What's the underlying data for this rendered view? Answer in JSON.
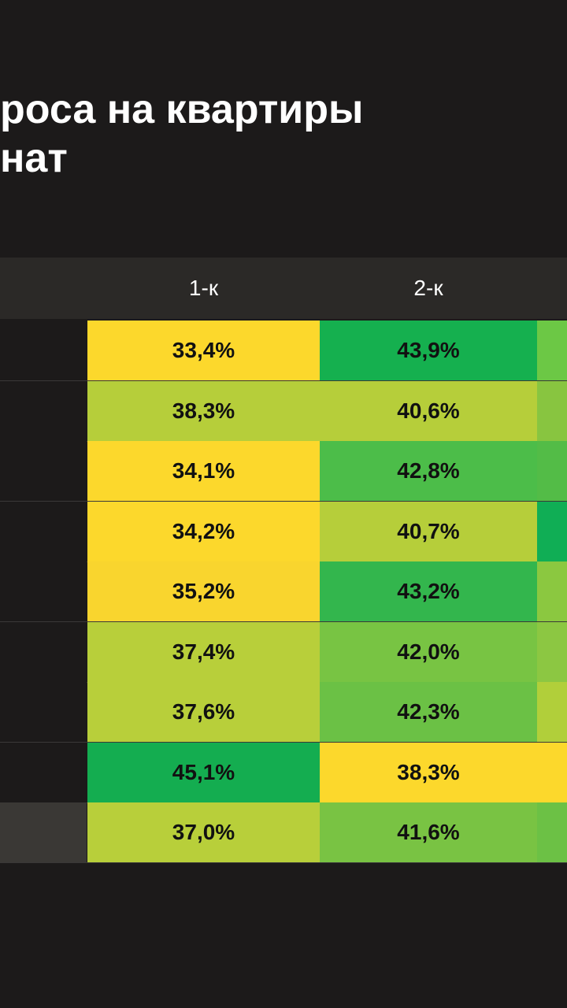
{
  "title_lines": [
    "роса на квартиры",
    "нат"
  ],
  "chart_data": {
    "type": "heatmap",
    "columns": [
      "1-к",
      "2-к"
    ],
    "rows": [
      {
        "values": [
          33.4,
          43.9
        ],
        "labels": [
          "33,4%",
          "43,9%"
        ],
        "colors": [
          "#fcd82c",
          "#15b04f"
        ],
        "edge_color": "#6cc845"
      },
      {
        "values": [
          38.3,
          40.6
        ],
        "labels": [
          "38,3%",
          "40,6%"
        ],
        "colors": [
          "#b6ce3a",
          "#b6ce3a"
        ],
        "edge_color": "#88c540"
      },
      {
        "values": [
          34.1,
          42.8
        ],
        "labels": [
          "34,1%",
          "42,8%"
        ],
        "colors": [
          "#fcd82c",
          "#4cbd49"
        ],
        "edge_color": "#53bc47"
      },
      {
        "values": [
          34.2,
          40.7
        ],
        "labels": [
          "34,2%",
          "40,7%"
        ],
        "colors": [
          "#fcd82c",
          "#b6ce3a"
        ],
        "edge_color": "#10ae55"
      },
      {
        "values": [
          35.2,
          43.2
        ],
        "labels": [
          "35,2%",
          "43,2%"
        ],
        "colors": [
          "#f9d52e",
          "#33b64d"
        ],
        "edge_color": "#8bc840"
      },
      {
        "values": [
          37.4,
          42.0
        ],
        "labels": [
          "37,4%",
          "42,0%"
        ],
        "colors": [
          "#b8cf3a",
          "#78c443"
        ],
        "edge_color": "#8cc742"
      },
      {
        "values": [
          37.6,
          42.3
        ],
        "labels": [
          "37,6%",
          "42,3%"
        ],
        "colors": [
          "#b8cf3a",
          "#6bc145"
        ],
        "edge_color": "#b1cf3a"
      },
      {
        "values": [
          45.1,
          38.3
        ],
        "labels": [
          "45,1%",
          "38,3%"
        ],
        "colors": [
          "#14ad50",
          "#fcd82c"
        ],
        "edge_color": "#fcd82c"
      },
      {
        "values": [
          37.0,
          41.6
        ],
        "labels": [
          "37,0%",
          "41,6%"
        ],
        "colors": [
          "#b8cf3a",
          "#79c343"
        ],
        "edge_color": "#6cc145",
        "total": true
      }
    ]
  }
}
